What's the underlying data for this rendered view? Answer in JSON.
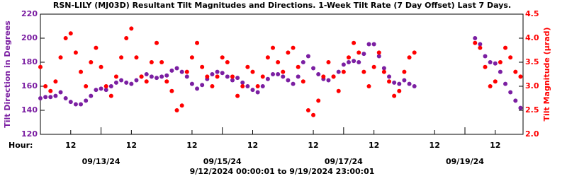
{
  "chart_data": {
    "type": "scatter",
    "title": "RSN-LILY (MJ03D) Resultant Tilt Magnitudes and Directions.  1-Week Tilt Rate (7 Day Offset) Last 7 Days.",
    "subtitle": "9/12/2024 00:00:01  to  9/19/2024 23:00:01",
    "x_label": "Hour:",
    "y_label": "Tilt Direction in Degrees",
    "y2_label": "Tilt Magnitude (μrad)",
    "xlim": [
      "2024-09-12 00:00:01",
      "2024-09-19 23:00:01"
    ],
    "xticks": [
      {
        "value": "2024-09-12 12:00",
        "label": "12"
      },
      {
        "value": "2024-09-13 12:00",
        "label": "12"
      },
      {
        "value": "2024-09-14 12:00",
        "label": "12"
      },
      {
        "value": "2024-09-15 12:00",
        "label": "12"
      },
      {
        "value": "2024-09-16 12:00",
        "label": "12"
      },
      {
        "value": "2024-09-17 12:00",
        "label": "12"
      },
      {
        "value": "2024-09-18 12:00",
        "label": "12"
      },
      {
        "value": "2024-09-19 12:00",
        "label": "12"
      }
    ],
    "date_ticks": [
      {
        "value": "2024-09-13 00:00",
        "label": "09/13/24"
      },
      {
        "value": "2024-09-15 00:00",
        "label": "09/15/24"
      },
      {
        "value": "2024-09-17 00:00",
        "label": "09/17/24"
      },
      {
        "value": "2024-09-19 00:00",
        "label": "09/19/24"
      }
    ],
    "ylim": [
      120,
      220
    ],
    "yticks": [
      120,
      140,
      160,
      180,
      200,
      220
    ],
    "y2lim": [
      2.0,
      4.5
    ],
    "y2ticks": [
      {
        "value": 2.0,
        "label": "2.0"
      },
      {
        "value": 2.5,
        "label": "2.5"
      },
      {
        "value": 3.0,
        "label": "3.0"
      },
      {
        "value": 3.5,
        "label": "3.5"
      },
      {
        "value": 4.0,
        "label": "4.0"
      },
      {
        "value": 4.5,
        "label": "4.5"
      }
    ],
    "x": [
      "2024-09-12 00:00",
      "2024-09-12 02:00",
      "2024-09-12 04:00",
      "2024-09-12 06:00",
      "2024-09-12 08:00",
      "2024-09-12 10:00",
      "2024-09-12 12:00",
      "2024-09-12 14:00",
      "2024-09-12 16:00",
      "2024-09-12 18:00",
      "2024-09-12 20:00",
      "2024-09-12 22:00",
      "2024-09-13 00:00",
      "2024-09-13 02:00",
      "2024-09-13 04:00",
      "2024-09-13 06:00",
      "2024-09-13 08:00",
      "2024-09-13 10:00",
      "2024-09-13 12:00",
      "2024-09-13 14:00",
      "2024-09-13 16:00",
      "2024-09-13 18:00",
      "2024-09-13 20:00",
      "2024-09-13 22:00",
      "2024-09-14 00:00",
      "2024-09-14 02:00",
      "2024-09-14 04:00",
      "2024-09-14 06:00",
      "2024-09-14 08:00",
      "2024-09-14 10:00",
      "2024-09-14 12:00",
      "2024-09-14 14:00",
      "2024-09-14 16:00",
      "2024-09-14 18:00",
      "2024-09-14 20:00",
      "2024-09-14 22:00",
      "2024-09-15 00:00",
      "2024-09-15 02:00",
      "2024-09-15 04:00",
      "2024-09-15 06:00",
      "2024-09-15 08:00",
      "2024-09-15 10:00",
      "2024-09-15 12:00",
      "2024-09-15 14:00",
      "2024-09-15 16:00",
      "2024-09-15 18:00",
      "2024-09-15 20:00",
      "2024-09-15 22:00",
      "2024-09-16 00:00",
      "2024-09-16 02:00",
      "2024-09-16 04:00",
      "2024-09-16 06:00",
      "2024-09-16 08:00",
      "2024-09-16 10:00",
      "2024-09-16 12:00",
      "2024-09-16 14:00",
      "2024-09-16 16:00",
      "2024-09-16 18:00",
      "2024-09-16 20:00",
      "2024-09-16 22:00",
      "2024-09-17 00:00",
      "2024-09-17 02:00",
      "2024-09-17 04:00",
      "2024-09-17 06:00",
      "2024-09-17 08:00",
      "2024-09-17 10:00",
      "2024-09-17 12:00",
      "2024-09-17 14:00",
      "2024-09-17 16:00",
      "2024-09-17 18:00",
      "2024-09-17 20:00",
      "2024-09-17 22:00",
      "2024-09-18 00:00",
      "2024-09-18 02:00",
      "2024-09-18 04:00",
      "2024-09-19 04:00",
      "2024-09-19 06:00",
      "2024-09-19 08:00",
      "2024-09-19 10:00",
      "2024-09-19 12:00",
      "2024-09-19 14:00",
      "2024-09-19 16:00",
      "2024-09-19 18:00",
      "2024-09-19 20:00",
      "2024-09-19 22:00"
    ],
    "series": [
      {
        "name": "Tilt Direction",
        "color": "#7b1fa2",
        "axis": "y",
        "values": [
          150,
          151,
          151,
          152,
          155,
          150,
          147,
          145,
          145,
          148,
          152,
          157,
          158,
          157,
          160,
          163,
          165,
          163,
          162,
          165,
          168,
          170,
          168,
          167,
          168,
          169,
          173,
          175,
          172,
          168,
          162,
          158,
          161,
          166,
          170,
          172,
          171,
          168,
          165,
          167,
          163,
          160,
          157,
          155,
          160,
          166,
          170,
          170,
          168,
          165,
          162,
          168,
          180,
          185,
          175,
          170,
          166,
          165,
          168,
          172,
          178,
          180,
          181,
          180,
          187,
          195,
          195,
          185,
          175,
          168,
          163,
          162,
          165,
          162,
          160,
          200,
          195,
          185,
          180,
          179,
          172,
          162,
          155,
          148,
          142
        ]
      },
      {
        "name": "Tilt Magnitude",
        "color": "#ff0000",
        "axis": "y2",
        "values": [
          3.4,
          3.0,
          2.9,
          3.1,
          3.6,
          4.0,
          4.1,
          3.7,
          3.3,
          3.0,
          3.5,
          3.8,
          3.4,
          3.0,
          2.8,
          3.2,
          3.6,
          4.0,
          4.2,
          3.6,
          3.2,
          3.1,
          3.5,
          3.9,
          3.5,
          3.1,
          2.9,
          2.5,
          2.6,
          3.3,
          3.6,
          3.9,
          3.4,
          3.2,
          3.0,
          3.2,
          3.6,
          3.5,
          3.2,
          2.8,
          3.0,
          3.4,
          3.3,
          3.0,
          3.2,
          3.6,
          3.8,
          3.5,
          3.3,
          3.7,
          3.8,
          3.4,
          3.1,
          2.5,
          2.4,
          2.7,
          3.2,
          3.5,
          3.2,
          2.9,
          3.3,
          3.6,
          3.9,
          3.7,
          3.3,
          3.0,
          3.4,
          3.7,
          3.3,
          3.1,
          2.8,
          2.9,
          3.3,
          3.6,
          3.7,
          3.9,
          3.8,
          3.4,
          3.0,
          3.1,
          3.5,
          3.8,
          3.6,
          3.3,
          3.2
        ]
      }
    ]
  }
}
